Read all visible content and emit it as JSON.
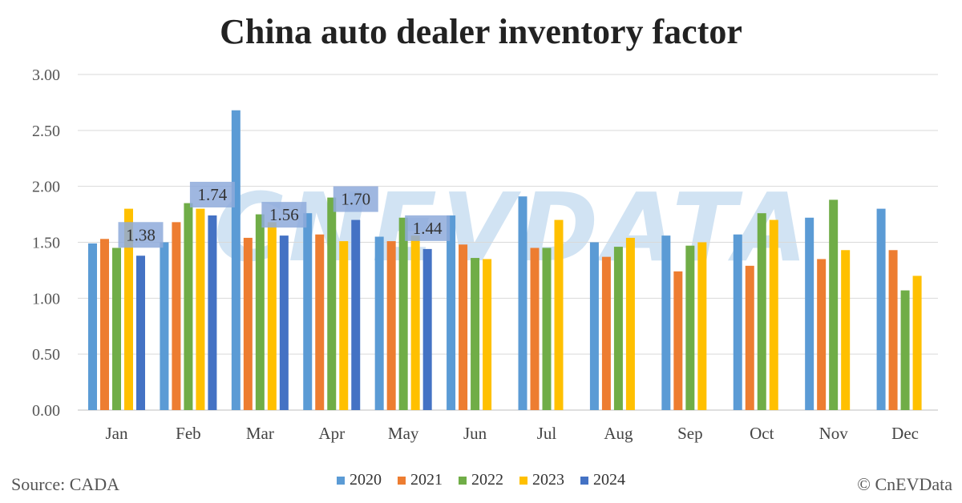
{
  "watermark": "CNEVDATA",
  "footer": {
    "source": "Source: CADA",
    "copyright": "© CnEVData"
  },
  "chart_data": {
    "type": "bar",
    "title": "China auto dealer inventory factor",
    "categories": [
      "Jan",
      "Feb",
      "Mar",
      "Apr",
      "May",
      "Jun",
      "Jul",
      "Aug",
      "Sep",
      "Oct",
      "Nov",
      "Dec"
    ],
    "ylim": [
      0,
      3
    ],
    "yticks": [
      "0.00",
      "0.50",
      "1.00",
      "1.50",
      "2.00",
      "2.50",
      "3.00"
    ],
    "grid": true,
    "legend_position": "bottom",
    "series": [
      {
        "name": "2020",
        "color": "#5b9bd5",
        "values": [
          1.49,
          1.5,
          2.68,
          1.76,
          1.55,
          1.74,
          1.91,
          1.5,
          1.56,
          1.57,
          1.72,
          1.8
        ]
      },
      {
        "name": "2021",
        "color": "#ed7d31",
        "values": [
          1.53,
          1.68,
          1.54,
          1.57,
          1.51,
          1.48,
          1.45,
          1.37,
          1.24,
          1.29,
          1.35,
          1.43
        ]
      },
      {
        "name": "2022",
        "color": "#70ad47",
        "values": [
          1.45,
          1.85,
          1.75,
          1.9,
          1.72,
          1.36,
          1.45,
          1.46,
          1.47,
          1.76,
          1.88,
          1.07
        ]
      },
      {
        "name": "2023",
        "color": "#ffc000",
        "values": [
          1.8,
          1.8,
          1.68,
          1.51,
          1.56,
          1.35,
          1.7,
          1.54,
          1.5,
          1.7,
          1.43,
          1.2
        ]
      },
      {
        "name": "2024",
        "color": "#4472c4",
        "values": [
          1.38,
          1.74,
          1.56,
          1.7,
          1.44,
          null,
          null,
          null,
          null,
          null,
          null,
          null
        ]
      }
    ],
    "data_labels": [
      {
        "category": "Jan",
        "series": "2024",
        "text": "1.38"
      },
      {
        "category": "Feb",
        "series": "2024",
        "text": "1.74"
      },
      {
        "category": "Mar",
        "series": "2024",
        "text": "1.56"
      },
      {
        "category": "Apr",
        "series": "2024",
        "text": "1.70"
      },
      {
        "category": "May",
        "series": "2024",
        "text": "1.44"
      }
    ]
  }
}
